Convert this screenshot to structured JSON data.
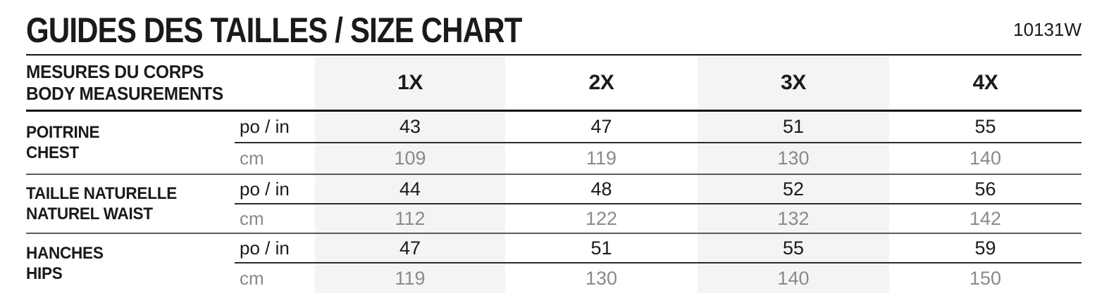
{
  "doc": {
    "title": "GUIDES DES TAILLES / SIZE CHART",
    "code": "10131W"
  },
  "table": {
    "header": {
      "fr": "MESURES DU CORPS",
      "en": "BODY MEASUREMENTS",
      "sizes": [
        "1X",
        "2X",
        "3X",
        "4X"
      ]
    },
    "units": {
      "inches": "po / in",
      "cm": "cm"
    },
    "rows": [
      {
        "fr": "POITRINE",
        "en": "CHEST",
        "in": [
          "43",
          "47",
          "51",
          "55"
        ],
        "cm": [
          "109",
          "119",
          "130",
          "140"
        ]
      },
      {
        "fr": "TAILLE NATURELLE",
        "en": "NATUREL WAIST",
        "in": [
          "44",
          "48",
          "52",
          "56"
        ],
        "cm": [
          "112",
          "122",
          "132",
          "142"
        ]
      },
      {
        "fr": "HANCHES",
        "en": "HIPS",
        "in": [
          "47",
          "51",
          "55",
          "59"
        ],
        "cm": [
          "119",
          "130",
          "140",
          "150"
        ]
      }
    ]
  },
  "colors": {
    "text": "#1a1a1a",
    "muted_text": "#8a8a8a",
    "shaded_column": "#f4f4f4",
    "rule": "#111111"
  }
}
